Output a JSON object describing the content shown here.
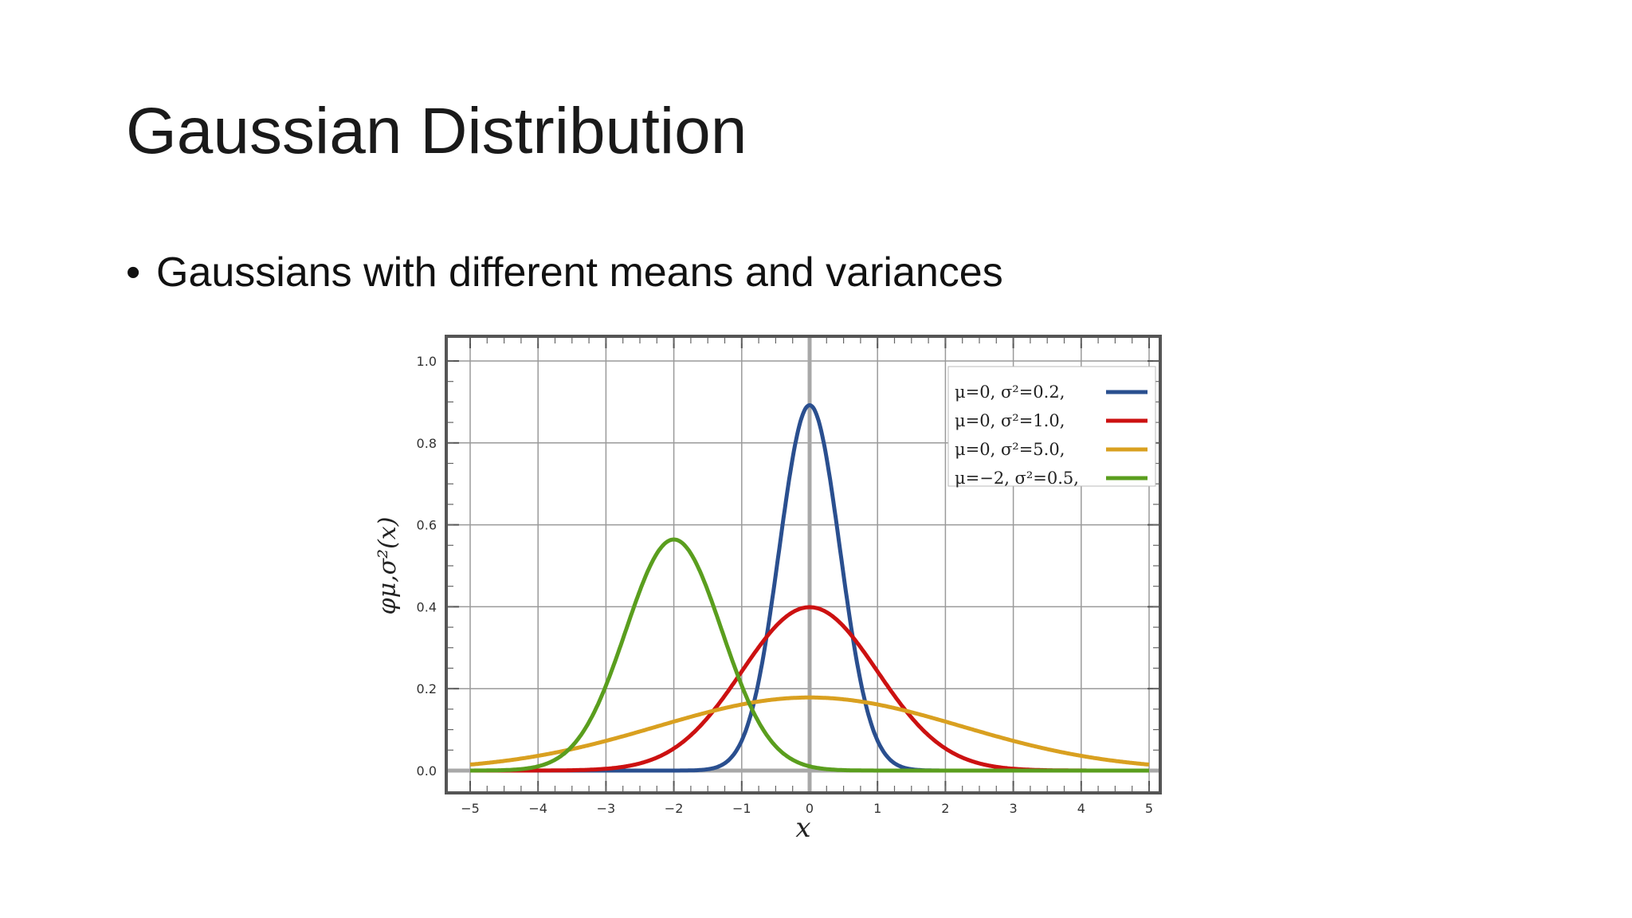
{
  "slide": {
    "title": "Gaussian Distribution",
    "bullet_symbol": "•",
    "bullet": "Gaussians with different means and variances"
  },
  "chart_data": {
    "type": "line",
    "title": "",
    "xlabel": "x",
    "ylabel": "φμ,σ²(x)",
    "xlim": [
      -5,
      5
    ],
    "ylim": [
      0.0,
      1.0
    ],
    "xticks": [
      "−5",
      "−4",
      "−3",
      "−2",
      "−1",
      "0",
      "1",
      "2",
      "3",
      "4",
      "5"
    ],
    "yticks": [
      "0.0",
      "0.2",
      "0.4",
      "0.6",
      "0.8",
      "1.0"
    ],
    "grid": true,
    "legend_position": "top-right",
    "series": [
      {
        "name": "μ=0,   σ²=0.2,",
        "mu": 0,
        "variance": 0.2,
        "color": "#2a4f8f",
        "peak": 0.89
      },
      {
        "name": "μ=0,   σ²=1.0,",
        "mu": 0,
        "variance": 1.0,
        "color": "#cc1111",
        "peak": 0.4
      },
      {
        "name": "μ=0,   σ²=5.0,",
        "mu": 0,
        "variance": 5.0,
        "color": "#d9a020",
        "peak": 0.18
      },
      {
        "name": "μ=−2, σ²=0.5,",
        "mu": -2,
        "variance": 0.5,
        "color": "#5a9e1e",
        "peak": 0.56
      }
    ]
  }
}
